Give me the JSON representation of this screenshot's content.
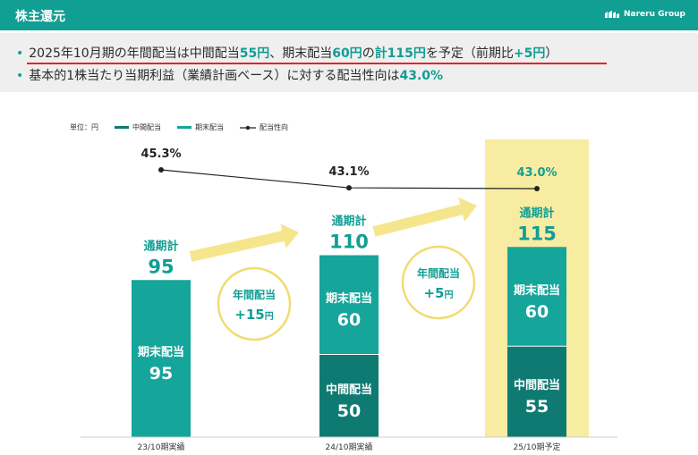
{
  "header": {
    "title": "株主還元",
    "logo_text": "Nareru Group"
  },
  "summary": {
    "line1": [
      {
        "t": "2025年10月期の年間配当は中間配当",
        "hl": false
      },
      {
        "t": "55円",
        "hl": true
      },
      {
        "t": "、期末配当",
        "hl": false
      },
      {
        "t": "60円",
        "hl": true
      },
      {
        "t": "の",
        "hl": false
      },
      {
        "t": "計115円",
        "hl": true
      },
      {
        "t": "を予定（前期比",
        "hl": false
      },
      {
        "t": "+5円",
        "hl": true
      },
      {
        "t": "）",
        "hl": false
      }
    ],
    "line2": [
      {
        "t": "基本的1株当たり当期利益（業績計画ベース）に対する配当性向は",
        "hl": false
      },
      {
        "t": "43.0%",
        "hl": true
      }
    ]
  },
  "colors": {
    "header": "#119e93",
    "interim": "#0f7a72",
    "year_end": "#15a59b",
    "payout_line": "#222222",
    "highlight": "#f8eca3",
    "arrow": "#f3e27a",
    "accent": "#119e93"
  },
  "chart_data": {
    "type": "bar",
    "unit_label": "単位：円",
    "stacked": true,
    "categories": [
      "23/10期実績",
      "24/10期実績",
      "25/10期予定"
    ],
    "series": [
      {
        "name": "中間配当",
        "values": [
          0,
          50,
          55
        ]
      },
      {
        "name": "期末配当",
        "values": [
          95,
          60,
          60
        ]
      }
    ],
    "segment_labels": {
      "中間配当": [
        "",
        "中間配当",
        "中間配当"
      ],
      "期末配当": [
        "期末配当",
        "期末配当",
        "期末配当"
      ]
    },
    "totals": [
      95,
      110,
      115
    ],
    "total_label": "通期計",
    "line_series": {
      "name": "配当性向",
      "values": [
        45.3,
        43.1,
        43.0
      ],
      "labels": [
        "45.3%",
        "43.1%",
        "43.0%"
      ]
    },
    "highlight_category": "25/10期予定",
    "increase_annotations": [
      {
        "line1": "年間配当",
        "value": "+15",
        "unit": "円"
      },
      {
        "line1": "年間配当",
        "value": "+5",
        "unit": "円"
      }
    ],
    "legend": [
      "中間配当",
      "期末配当",
      "配当性向"
    ],
    "legend_position": "top-left"
  }
}
